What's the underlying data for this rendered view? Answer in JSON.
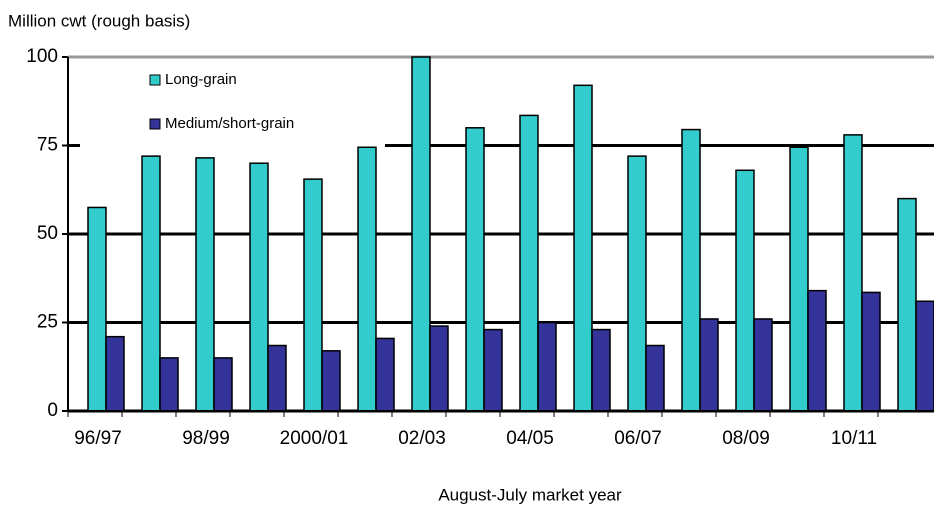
{
  "chart_data": {
    "type": "bar",
    "title": "Million cwt (rough basis)",
    "x_label": "August-July market year",
    "categories": [
      "96/97",
      null,
      "98/99",
      null,
      "2000/01",
      null,
      "02/03",
      null,
      "04/05",
      null,
      "06/07",
      null,
      "08/09",
      null,
      "10/11",
      null
    ],
    "series": [
      {
        "name": "Long-grain",
        "color": "#33cccc",
        "values": [
          57.5,
          72,
          71.5,
          70,
          65.5,
          74.5,
          100,
          80,
          83.5,
          92,
          72,
          79.5,
          68,
          74.5,
          78,
          60
        ]
      },
      {
        "name": "Medium/short-grain",
        "color": "#333399",
        "values": [
          21,
          15,
          15,
          18.5,
          17,
          20.5,
          24,
          23,
          25,
          23,
          18.5,
          26,
          26,
          34,
          33.5,
          31
        ]
      }
    ],
    "ylim": [
      0,
      100
    ],
    "yticks": [
      0,
      25,
      50,
      75,
      100
    ],
    "grid": true,
    "legend": "upper left"
  }
}
